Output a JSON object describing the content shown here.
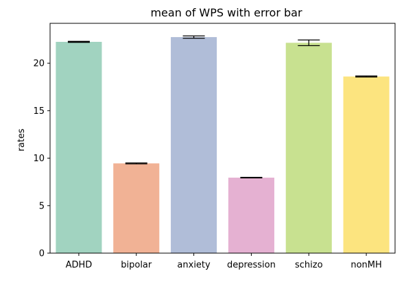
{
  "chart_data": {
    "type": "bar",
    "title": "mean of WPS with error bar",
    "xlabel": "",
    "ylabel": "rates",
    "categories": [
      "ADHD",
      "bipolar",
      "anxiety",
      "depression",
      "schizo",
      "nonMH"
    ],
    "values": [
      22.25,
      9.45,
      22.75,
      7.95,
      22.15,
      18.6
    ],
    "errors": [
      0.05,
      0.05,
      0.12,
      0.03,
      0.3,
      0.05
    ],
    "colors": [
      "#a1d3c0",
      "#f1b295",
      "#b0bdd8",
      "#e5b1d2",
      "#c8e190",
      "#fce47f"
    ],
    "ylim": [
      0,
      24.2
    ],
    "yticks": [
      0,
      5,
      10,
      15,
      20
    ],
    "grid": false
  }
}
